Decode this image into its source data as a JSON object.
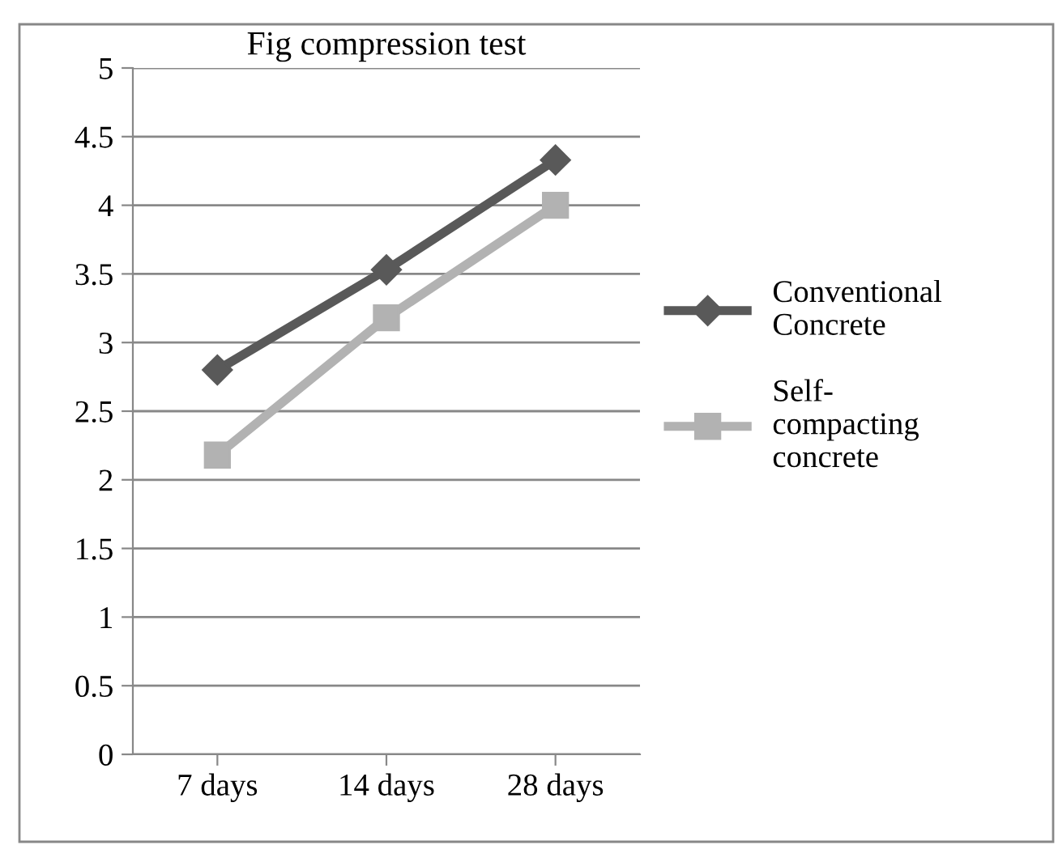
{
  "chart_data": {
    "type": "line",
    "title": "Fig compression test",
    "categories": [
      "7 days",
      "14 days",
      "28 days"
    ],
    "series": [
      {
        "name": "Conventional Concrete",
        "color": "#595959",
        "values": [
          2.8,
          3.53,
          4.33
        ],
        "marker": "diamond"
      },
      {
        "name": "Self-compacting concrete",
        "color": "#b2b2b2",
        "values": [
          2.18,
          3.18,
          4.0
        ],
        "marker": "square"
      }
    ],
    "ylim": [
      0,
      5
    ],
    "yticks": [
      0,
      0.5,
      1,
      1.5,
      2,
      2.5,
      3,
      3.5,
      4,
      4.5,
      5
    ],
    "grid": "y",
    "legend": "right",
    "line_style": "solid"
  }
}
